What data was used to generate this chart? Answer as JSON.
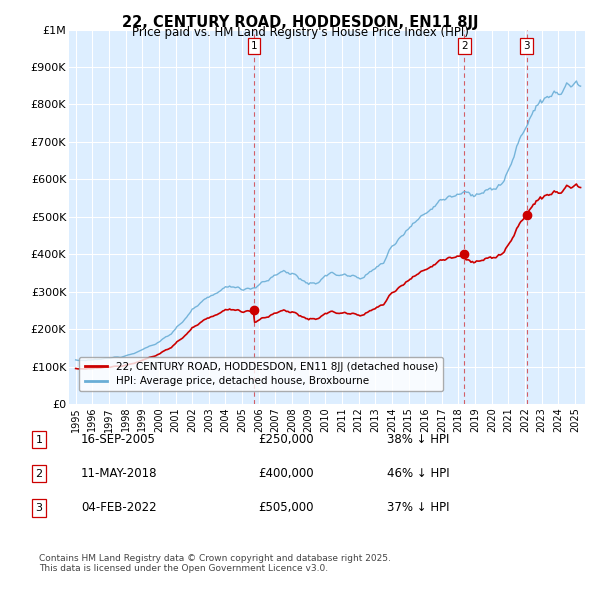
{
  "title": "22, CENTURY ROAD, HODDESDON, EN11 8JJ",
  "subtitle": "Price paid vs. HM Land Registry's House Price Index (HPI)",
  "ylabel_vals": [
    "£0",
    "£100K",
    "£200K",
    "£300K",
    "£400K",
    "£500K",
    "£600K",
    "£700K",
    "£800K",
    "£900K",
    "£1M"
  ],
  "ylim": [
    0,
    1000000
  ],
  "yticks": [
    0,
    100000,
    200000,
    300000,
    400000,
    500000,
    600000,
    700000,
    800000,
    900000,
    1000000
  ],
  "sale_prices": [
    250000,
    400000,
    505000
  ],
  "sale_labels": [
    "1",
    "2",
    "3"
  ],
  "sale_date_strs": [
    "16-SEP-2005",
    "11-MAY-2018",
    "04-FEB-2022"
  ],
  "sale_pct": [
    "38%",
    "46%",
    "37%"
  ],
  "legend_entries": [
    "22, CENTURY ROAD, HODDESDON, EN11 8JJ (detached house)",
    "HPI: Average price, detached house, Broxbourne"
  ],
  "footnote": "Contains HM Land Registry data © Crown copyright and database right 2025.\nThis data is licensed under the Open Government Licence v3.0.",
  "hpi_color": "#6aaed6",
  "price_color": "#cc0000",
  "vline_color": "#cc0000",
  "background_color": "#ffffff",
  "plot_bg_color": "#ddeeff",
  "grid_color": "#ffffff"
}
